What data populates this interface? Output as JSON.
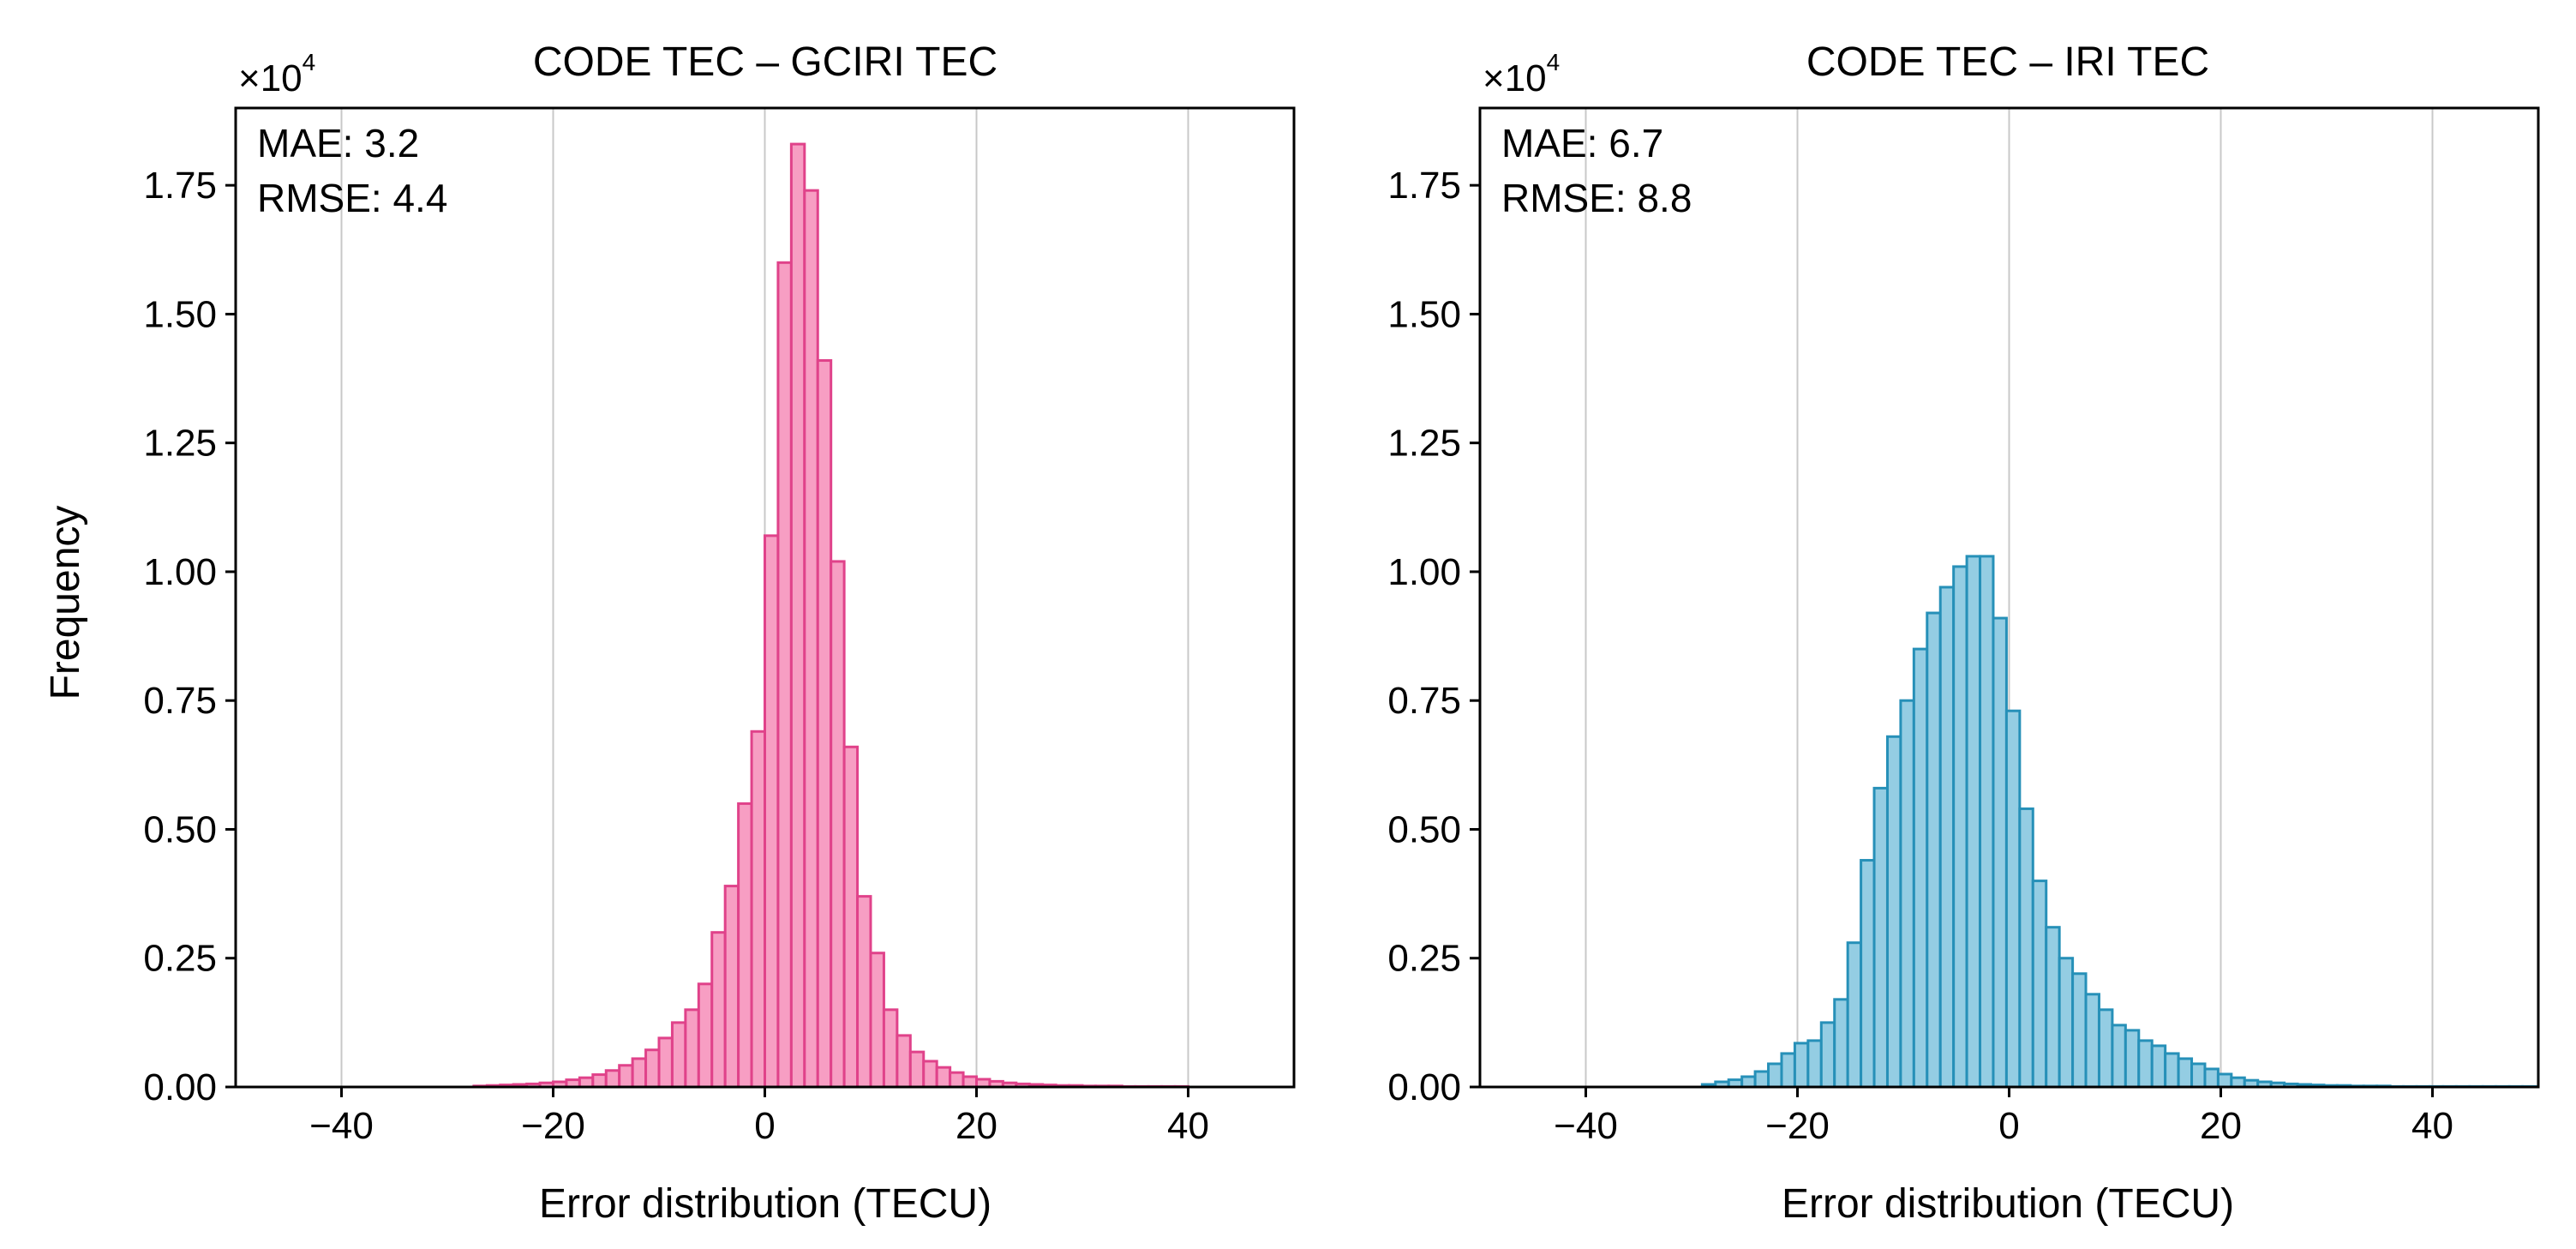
{
  "colors": {
    "left_fill": "#f79ec3",
    "left_edge": "#e0428a",
    "right_fill": "#94cde3",
    "right_edge": "#2690b8",
    "grid": "#c8c8c8"
  },
  "chart_data": [
    {
      "type": "bar",
      "title": "CODE TEC – GCIRI TEC",
      "xlabel": "Error distribution (TECU)",
      "ylabel": "Frequency",
      "y_multiplier": "×10",
      "y_multiplier_exp": "4",
      "xlim": [
        -50,
        50
      ],
      "ylim": [
        0,
        1.9
      ],
      "xticks": [
        -40,
        -20,
        0,
        20,
        40
      ],
      "xtick_labels": [
        "−40",
        "−20",
        "0",
        "20",
        "40"
      ],
      "yticks": [
        0,
        0.25,
        0.5,
        0.75,
        1.0,
        1.25,
        1.5,
        1.75
      ],
      "ytick_labels": [
        "0.00",
        "0.25",
        "0.50",
        "0.75",
        "1.00",
        "1.25",
        "1.50",
        "1.75"
      ],
      "grid": "x",
      "stats": {
        "mae": "MAE: 3.2",
        "rmse": "RMSE: 4.4"
      },
      "bin_width": 1.25,
      "bin_start": -27.5,
      "values": [
        0.002,
        0.003,
        0.004,
        0.005,
        0.006,
        0.008,
        0.01,
        0.014,
        0.018,
        0.024,
        0.032,
        0.042,
        0.055,
        0.072,
        0.095,
        0.125,
        0.15,
        0.2,
        0.3,
        0.39,
        0.55,
        0.69,
        1.07,
        1.6,
        1.83,
        1.74,
        1.41,
        1.02,
        0.66,
        0.37,
        0.26,
        0.15,
        0.1,
        0.068,
        0.05,
        0.038,
        0.028,
        0.02,
        0.015,
        0.011,
        0.008,
        0.006,
        0.005,
        0.004,
        0.003,
        0.003,
        0.002,
        0.002,
        0.002,
        0.001,
        0.001,
        0.001,
        0.001,
        0.001
      ]
    },
    {
      "type": "bar",
      "title": "CODE TEC – IRI TEC",
      "xlabel": "Error distribution (TECU)",
      "ylabel": "",
      "y_multiplier": "×10",
      "y_multiplier_exp": "4",
      "xlim": [
        -50,
        50
      ],
      "ylim": [
        0,
        1.9
      ],
      "xticks": [
        -40,
        -20,
        0,
        20,
        40
      ],
      "xtick_labels": [
        "−40",
        "−20",
        "0",
        "20",
        "40"
      ],
      "yticks": [
        0,
        0.25,
        0.5,
        0.75,
        1.0,
        1.25,
        1.5,
        1.75
      ],
      "ytick_labels": [
        "0.00",
        "0.25",
        "0.50",
        "0.75",
        "1.00",
        "1.25",
        "1.50",
        "1.75"
      ],
      "grid": "x",
      "stats": {
        "mae": "MAE: 6.7",
        "rmse": "RMSE: 8.8"
      },
      "bin_width": 1.25,
      "bin_start": -29,
      "values": [
        0.005,
        0.01,
        0.014,
        0.02,
        0.03,
        0.045,
        0.065,
        0.085,
        0.09,
        0.125,
        0.17,
        0.28,
        0.44,
        0.58,
        0.68,
        0.75,
        0.85,
        0.92,
        0.97,
        1.01,
        1.03,
        1.03,
        0.91,
        0.73,
        0.54,
        0.4,
        0.31,
        0.25,
        0.22,
        0.18,
        0.15,
        0.12,
        0.11,
        0.09,
        0.08,
        0.065,
        0.055,
        0.045,
        0.035,
        0.025,
        0.018,
        0.013,
        0.01,
        0.008,
        0.006,
        0.005,
        0.004,
        0.003,
        0.003,
        0.002,
        0.002,
        0.002,
        0.001,
        0.001,
        0.001,
        0.001,
        0.001,
        0.001,
        0.001,
        0.001,
        0.001,
        0.001,
        0.001
      ]
    }
  ]
}
